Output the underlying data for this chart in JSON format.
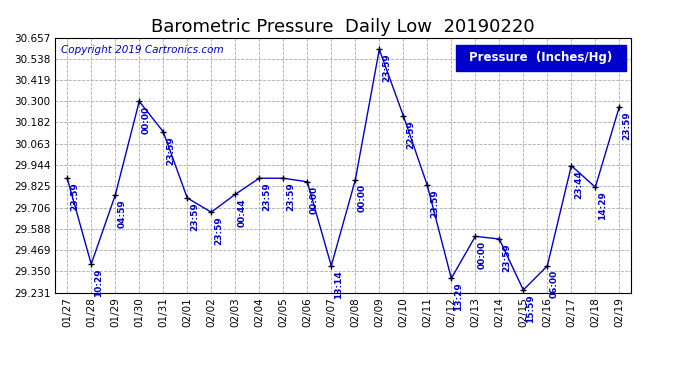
{
  "title": "Barometric Pressure  Daily Low  20190220",
  "copyright": "Copyright 2019 Cartronics.com",
  "legend_label": "Pressure  (Inches/Hg)",
  "background_color": "#ffffff",
  "line_color": "#0000CD",
  "marker_color": "#000000",
  "ylim": [
    29.231,
    30.657
  ],
  "yticks": [
    29.231,
    29.35,
    29.469,
    29.588,
    29.706,
    29.825,
    29.944,
    30.063,
    30.182,
    30.3,
    30.419,
    30.538,
    30.657
  ],
  "dates": [
    "01/27",
    "01/28",
    "01/29",
    "01/30",
    "01/31",
    "02/01",
    "02/02",
    "02/03",
    "02/04",
    "02/05",
    "02/06",
    "02/07",
    "02/08",
    "02/09",
    "02/10",
    "02/11",
    "02/12",
    "02/13",
    "02/14",
    "02/15",
    "02/16",
    "02/17",
    "02/18",
    "02/19"
  ],
  "values": [
    29.87,
    29.39,
    29.775,
    30.3,
    30.13,
    29.76,
    29.68,
    29.78,
    29.87,
    29.87,
    29.85,
    29.38,
    29.86,
    30.59,
    30.22,
    29.83,
    29.31,
    29.545,
    29.53,
    29.245,
    29.38,
    29.94,
    29.82,
    30.27
  ],
  "point_labels": [
    "23:59",
    "10:29",
    "04:59",
    "00:00",
    "23:59",
    "23:59",
    "23:59",
    "00:44",
    "23:59",
    "23:59",
    "00:00",
    "13:14",
    "00:00",
    "23:59",
    "22:59",
    "23:59",
    "13:29",
    "00:00",
    "23:59",
    "15:59",
    "06:00",
    "23:44",
    "14:29",
    "23:59"
  ],
  "title_fontsize": 13,
  "label_fontsize": 6.5,
  "tick_fontsize": 7.5,
  "legend_fontsize": 8.5,
  "copyright_fontsize": 7.5
}
